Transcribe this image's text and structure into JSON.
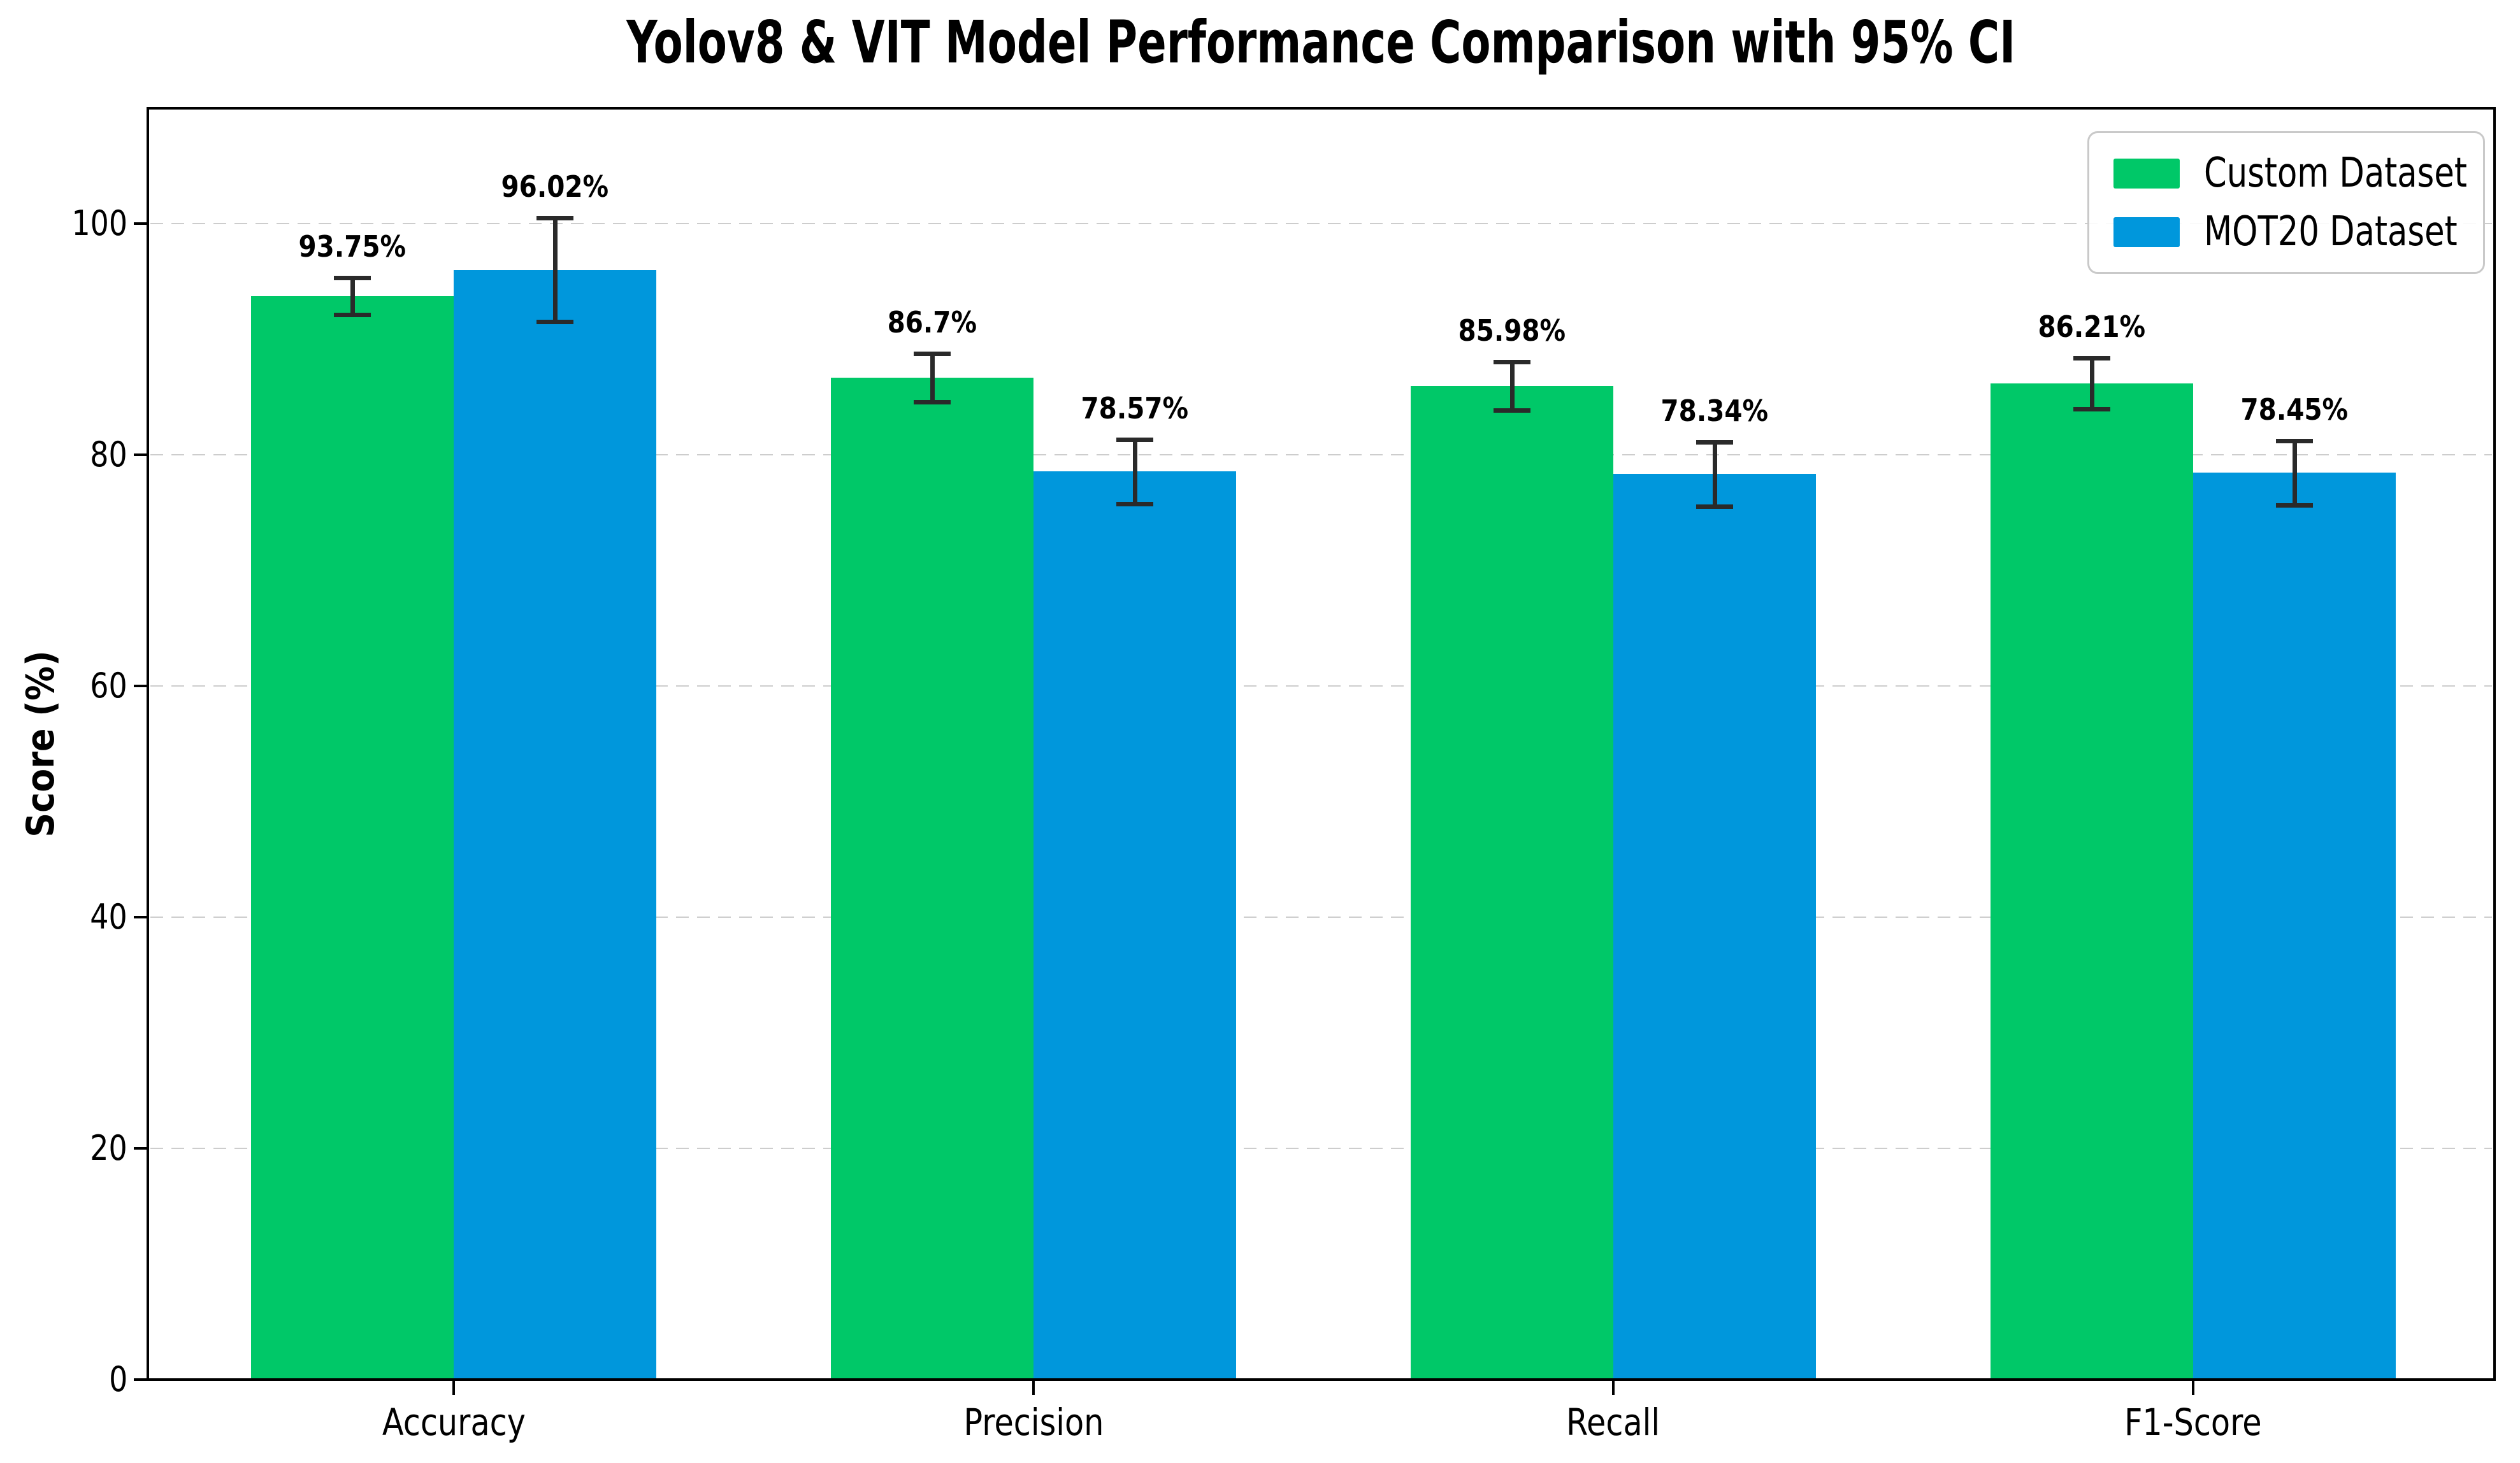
{
  "chart_data": {
    "type": "bar",
    "title": "Yolov8 & VIT Model Performance Comparison with 95% CI",
    "ylabel": "Score (%)",
    "xlabel": "",
    "categories": [
      "Accuracy",
      "Precision",
      "Recall",
      "F1-Score"
    ],
    "series": [
      {
        "name": "Custom Dataset",
        "color": "#00c868",
        "values": [
          93.75,
          86.7,
          85.98,
          86.21
        ],
        "value_labels": [
          "93.75%",
          "86.7%",
          "85.98%",
          "86.21%"
        ],
        "ci_95": [
          1.6,
          2.1,
          2.1,
          2.2
        ]
      },
      {
        "name": "MOT20 Dataset",
        "color": "#0097dc",
        "values": [
          96.02,
          78.57,
          78.34,
          78.45
        ],
        "value_labels": [
          "96.02%",
          "78.57%",
          "78.34%",
          "78.45%"
        ],
        "ci_95": [
          4.5,
          2.8,
          2.8,
          2.8
        ]
      }
    ],
    "ylim": [
      0,
      110
    ],
    "yticks": [
      0,
      20,
      40,
      60,
      80,
      100
    ],
    "grid": {
      "axis": "y",
      "style": "dashed",
      "color": "#cdcdcd",
      "on": true
    },
    "legend": {
      "position": "upper right"
    },
    "error_bar_color": "#2a2a2a",
    "background_color": "#ffffff",
    "axis_color": "#000000"
  }
}
